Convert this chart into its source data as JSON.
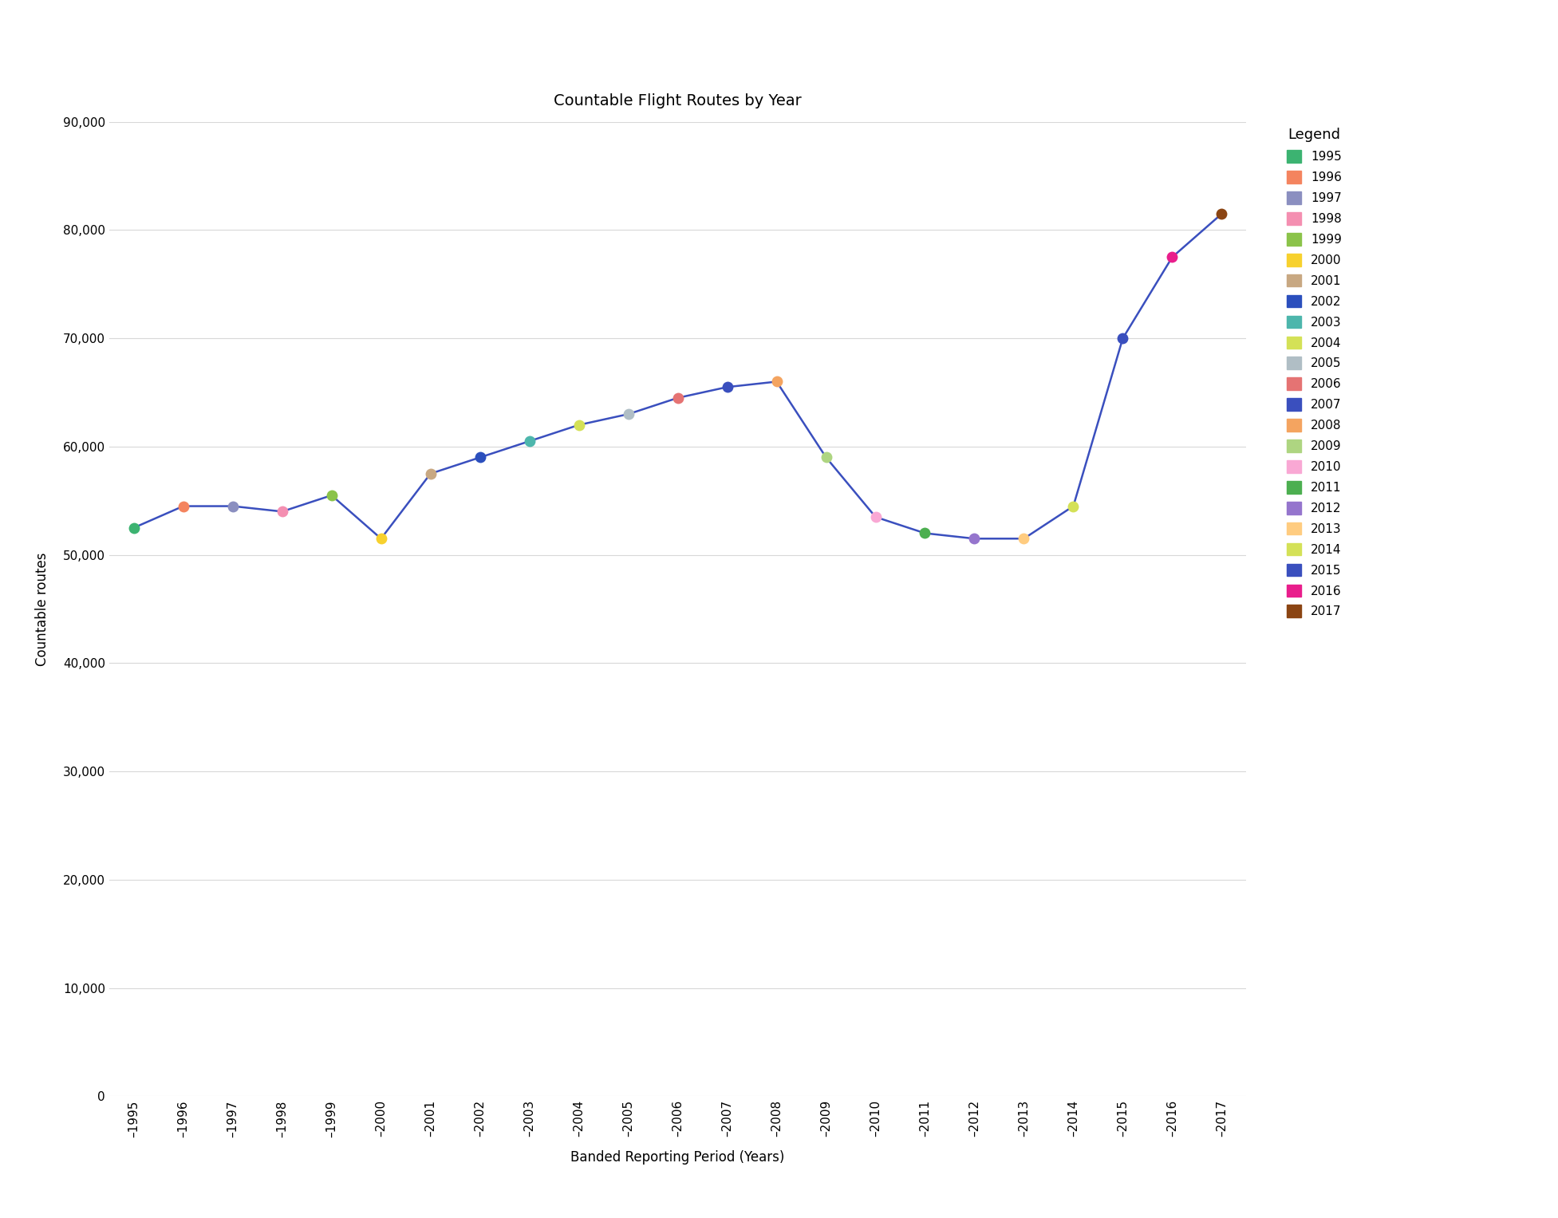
{
  "title": "Countable Flight Routes by Year",
  "xlabel": "Banded Reporting Period (Years)",
  "ylabel": "Countable routes",
  "years": [
    "1995",
    "1996",
    "1997",
    "1998",
    "1999",
    "2000",
    "2001",
    "2002",
    "2003",
    "2004",
    "2005",
    "2006",
    "2007",
    "2008",
    "2009",
    "2010",
    "2011",
    "2012",
    "2013",
    "2014",
    "2015",
    "2016",
    "2017"
  ],
  "values": [
    52500,
    54500,
    54500,
    54000,
    55500,
    51500,
    57500,
    59000,
    60500,
    62000,
    63000,
    64500,
    65500,
    66000,
    59000,
    53500,
    52000,
    51500,
    51500,
    54500,
    70000,
    77500,
    81500
  ],
  "point_colors": [
    "#3cb371",
    "#f4845f",
    "#8b8fc0",
    "#f48fb1",
    "#8bc34a",
    "#f7d12e",
    "#c8a882",
    "#2b4fbd",
    "#4db6ac",
    "#d4e157",
    "#b0bec5",
    "#e57373",
    "#3a4fbe",
    "#f4a460",
    "#aed581",
    "#f9a8d4",
    "#4caf50",
    "#9575cd",
    "#ffcc80",
    "#d4e157",
    "#3a4fbe",
    "#e91e8c",
    "#8b4513"
  ],
  "line_color": "#3a4fbe",
  "marker_size": 10,
  "ylim": [
    0,
    90000
  ],
  "yticks": [
    0,
    10000,
    20000,
    30000,
    40000,
    50000,
    60000,
    70000,
    80000,
    90000
  ],
  "legend_labels": [
    "1995",
    "1996",
    "1997",
    "1998",
    "1999",
    "2000",
    "2001",
    "2002",
    "2003",
    "2004",
    "2005",
    "2006",
    "2007",
    "2008",
    "2009",
    "2010",
    "2011",
    "2012",
    "2013",
    "2014",
    "2015",
    "2016",
    "2017"
  ],
  "legend_colors": [
    "#3cb371",
    "#f4845f",
    "#8b8fc0",
    "#f48fb1",
    "#8bc34a",
    "#f7d12e",
    "#c8a882",
    "#2b4fbd",
    "#4db6ac",
    "#d4e157",
    "#b0bec5",
    "#e57373",
    "#3a4fbe",
    "#f4a460",
    "#aed581",
    "#f9a8d4",
    "#4caf50",
    "#9575cd",
    "#ffcc80",
    "#d4e157",
    "#3a4fbe",
    "#e91e8c",
    "#8b4513"
  ],
  "background_color": "#ffffff",
  "grid_color": "#d8d8d8",
  "title_fontsize": 14,
  "axis_label_fontsize": 12,
  "tick_fontsize": 11,
  "legend_fontsize": 11,
  "legend_title_fontsize": 13
}
